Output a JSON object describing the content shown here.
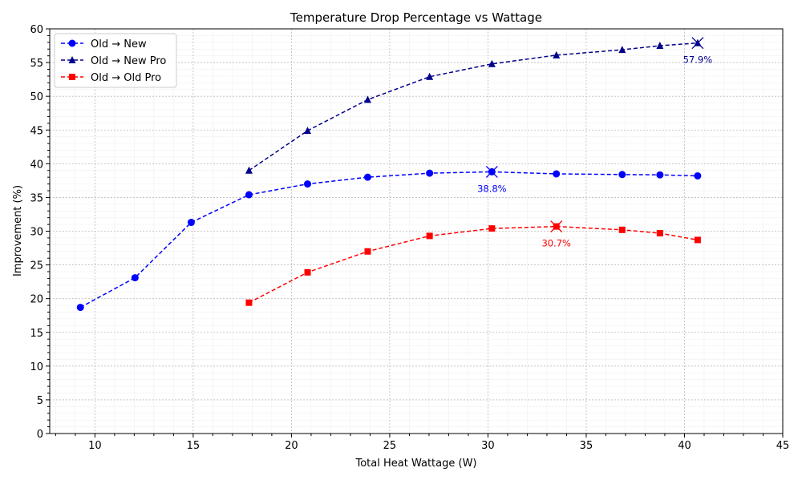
{
  "chart_data": {
    "type": "line",
    "title": "Temperature Drop Percentage vs Wattage",
    "xlabel": "Total Heat Wattage (W)",
    "ylabel": "Improvement (%)",
    "xlim": [
      7.7,
      45
    ],
    "ylim": [
      0,
      60
    ],
    "xticks": [
      10,
      15,
      20,
      25,
      30,
      35,
      40,
      45
    ],
    "yticks": [
      0,
      5,
      10,
      15,
      20,
      25,
      30,
      35,
      40,
      45,
      50,
      55,
      60
    ],
    "grid": true,
    "legend_position": "top-left",
    "series": [
      {
        "name": "Old → New",
        "color": "#0000ff",
        "marker": "circle",
        "x": [
          9.26,
          12.04,
          14.9,
          17.84,
          20.82,
          23.88,
          27.03,
          30.2,
          33.48,
          36.83,
          38.75,
          40.67
        ],
        "y": [
          18.7,
          23.1,
          31.3,
          35.4,
          37.0,
          38.0,
          38.6,
          38.8,
          38.5,
          38.4,
          38.35,
          38.2
        ],
        "peak_index": 7,
        "peak_label": "38.8%"
      },
      {
        "name": "Old → New Pro",
        "color": "#00008b",
        "marker": "triangle",
        "x": [
          17.84,
          20.82,
          23.88,
          27.03,
          30.2,
          33.48,
          36.83,
          38.75,
          40.67
        ],
        "y": [
          39.0,
          44.9,
          49.5,
          52.9,
          54.8,
          56.1,
          56.9,
          57.5,
          57.9
        ],
        "peak_index": 8,
        "peak_label": "57.9%"
      },
      {
        "name": "Old → Old Pro",
        "color": "#ff0000",
        "marker": "square",
        "x": [
          17.84,
          20.82,
          23.88,
          27.03,
          30.2,
          33.48,
          36.83,
          38.75,
          40.67
        ],
        "y": [
          19.4,
          23.9,
          27.0,
          29.3,
          30.4,
          30.7,
          30.2,
          29.7,
          28.7
        ],
        "peak_index": 5,
        "peak_label": "30.7%"
      }
    ]
  }
}
